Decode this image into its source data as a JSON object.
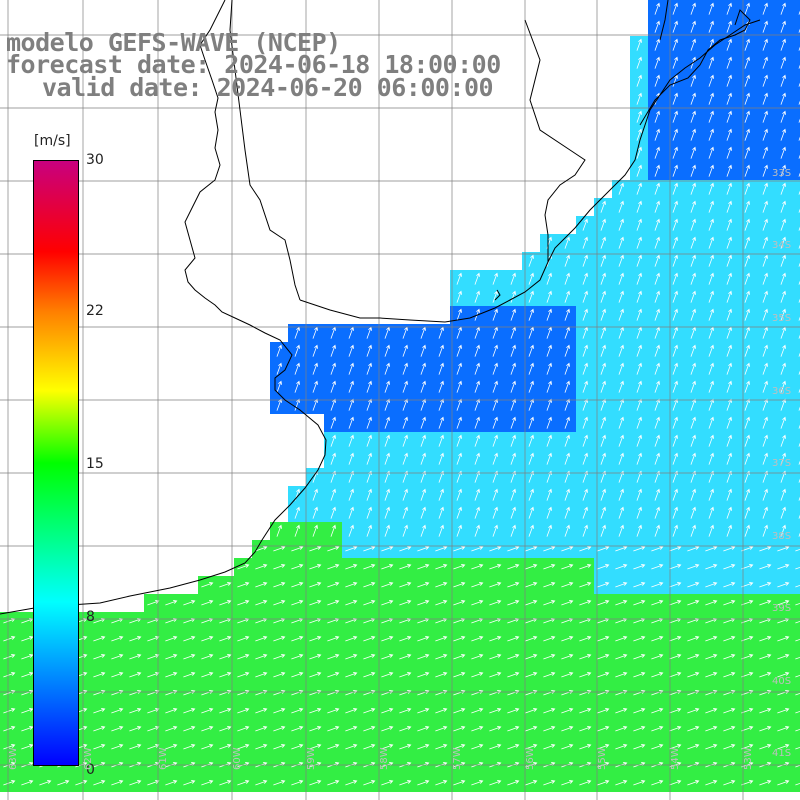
{
  "title": {
    "line1": "modelo GEFS-WAVE (NCEP)",
    "line2": "forecast date: 2024-06-18 18:00:00",
    "line3": "valid date: 2024-06-20 06:00:00"
  },
  "colorbar": {
    "unit": "[m/s]",
    "ticks": [
      "30",
      "22",
      "15",
      "8",
      "0"
    ],
    "stops": [
      "#0000ff",
      "#00ffff",
      "#00ff00",
      "#ffff00",
      "#ff8000",
      "#ff0000",
      "#c8007f"
    ]
  },
  "lat_labels": [
    "33S",
    "34S",
    "35S",
    "36S",
    "37S",
    "38S",
    "39S",
    "40S",
    "41S"
  ],
  "lon_labels": [
    "63W",
    "62W",
    "61W",
    "60W",
    "59W",
    "58W",
    "57W",
    "56W",
    "55W",
    "54W",
    "53W"
  ],
  "field": {
    "variable": "wind speed",
    "unit": "m/s",
    "arrow_direction": "from southwest toward northeast",
    "calm_zone_color": "#0a6eff",
    "open_sea_color": "#33ddff",
    "strong_zone_color": "#33ee44"
  }
}
